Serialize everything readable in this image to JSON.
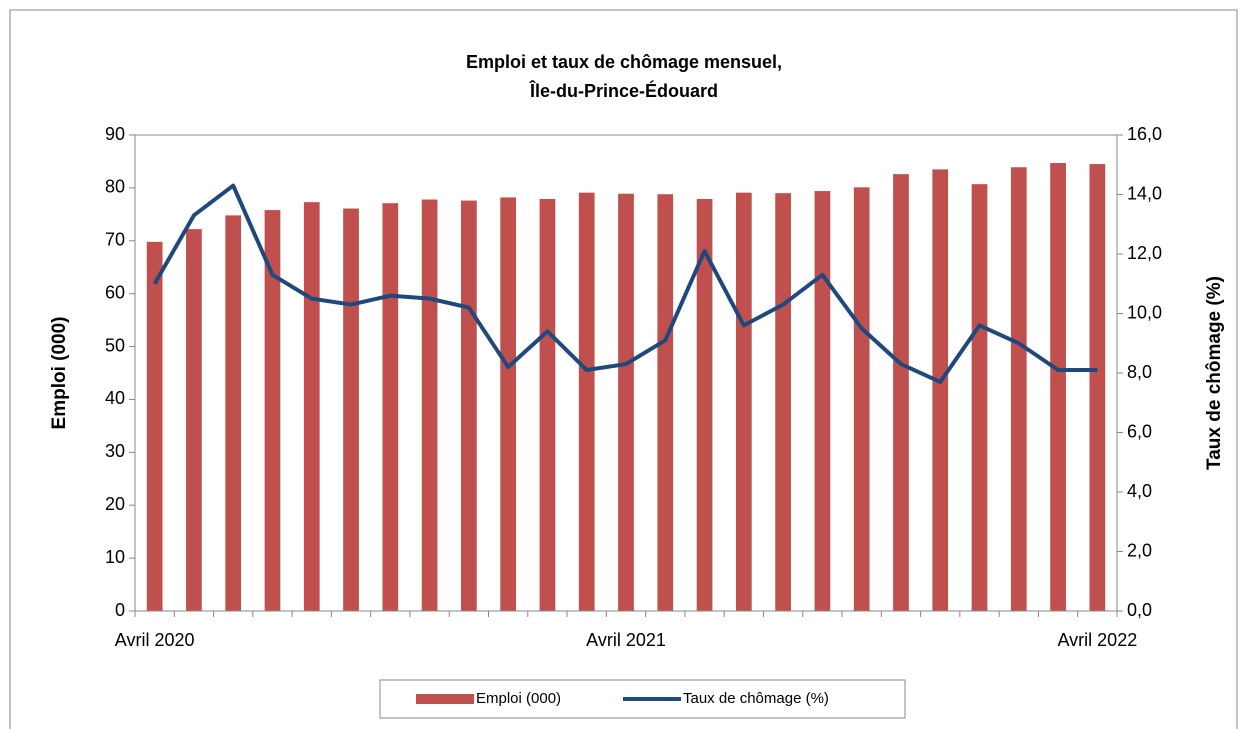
{
  "chart_data": {
    "type": "bar_line",
    "title": [
      "Emploi et taux de chômage mensuel,",
      "Île-du-Prince-Édouard"
    ],
    "ylabel": "Emploi (000)",
    "y2label": "Taux de chômage (%)",
    "categories": [
      "Avril 2020",
      null,
      null,
      null,
      null,
      null,
      null,
      null,
      null,
      null,
      null,
      null,
      "Avril 2021",
      null,
      null,
      null,
      null,
      null,
      null,
      null,
      null,
      null,
      null,
      null,
      "Avril 2022"
    ],
    "series": [
      {
        "name": "Emploi (000)",
        "type": "bar",
        "color": "#c0504d",
        "axis": "y",
        "values": [
          69.8,
          72.2,
          74.8,
          75.8,
          77.3,
          76.1,
          77.1,
          77.8,
          77.6,
          78.2,
          77.9,
          79.1,
          78.9,
          78.8,
          77.9,
          79.1,
          79.0,
          79.4,
          80.1,
          82.6,
          83.5,
          80.7,
          83.9,
          84.7,
          84.5
        ]
      },
      {
        "name": "Taux de chômage (%)",
        "type": "line",
        "color": "#1f497d",
        "axis": "y2",
        "values": [
          11.0,
          13.3,
          14.3,
          11.3,
          10.5,
          10.3,
          10.6,
          10.5,
          10.2,
          8.2,
          9.4,
          8.1,
          8.3,
          9.1,
          12.1,
          9.6,
          10.3,
          11.3,
          9.5,
          8.3,
          7.7,
          9.6,
          9.0,
          8.1,
          8.1
        ]
      }
    ],
    "ylim": [
      0,
      90
    ],
    "yticks": [
      0,
      10,
      20,
      30,
      40,
      50,
      60,
      70,
      80,
      90
    ],
    "y2lim": [
      0,
      16
    ],
    "y2ticks": [
      {
        "value": 0,
        "label": "0,0"
      },
      {
        "value": 2,
        "label": "2,0"
      },
      {
        "value": 4,
        "label": "4,0"
      },
      {
        "value": 6,
        "label": "6,0"
      },
      {
        "value": 8,
        "label": "8,0"
      },
      {
        "value": 10,
        "label": "10,0"
      },
      {
        "value": 12,
        "label": "12,0"
      },
      {
        "value": 14,
        "label": "14,0"
      },
      {
        "value": 16,
        "label": "16,0"
      }
    ],
    "legend": "bottom"
  }
}
